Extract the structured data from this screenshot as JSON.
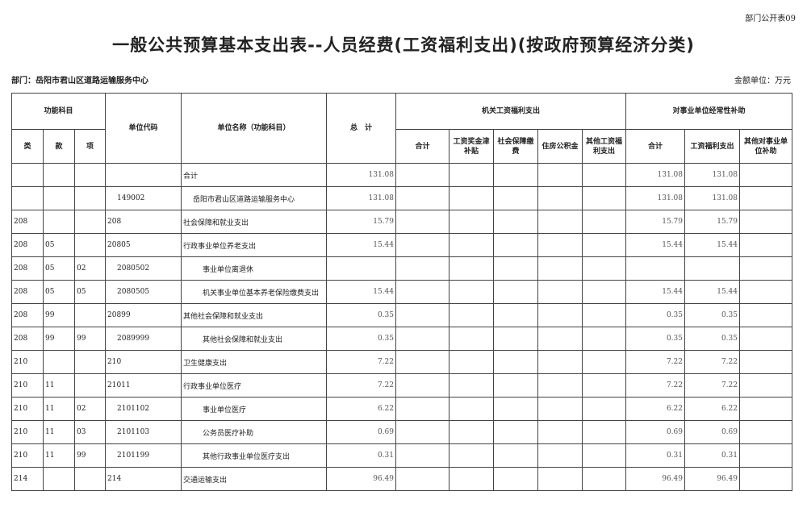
{
  "form_code": "部门公开表09",
  "title": "一般公共预算基本支出表--人员经费(工资福利支出)(按政府预算经济分类)",
  "department": "部门：岳阳市君山区道路运输服务中心",
  "unit": "金额单位：万元",
  "headers": {
    "func": "功能科目",
    "lei": "类",
    "kuan": "款",
    "xiang": "项",
    "code": "单位代码",
    "name": "单位名称（功能科目）",
    "total": "总　计",
    "org": "机关工资福利支出",
    "org_sum": "合计",
    "org_wage": "工资奖金津补贴",
    "org_social": "社会保障缴费",
    "org_housing": "住房公积金",
    "org_other": "其他工资福利支出",
    "sub": "对事业单位经常性补助",
    "sub_sum": "合计",
    "sub_wage": "工资福利支出",
    "sub_other": "其他对事业单位补助"
  },
  "rows": [
    {
      "lei": "",
      "kuan": "",
      "xiang": "",
      "code": "",
      "name": "合计",
      "total": "131.08",
      "sub_sum": "131.08",
      "sub_wage": "131.08",
      "indent": 0
    },
    {
      "lei": "",
      "kuan": "",
      "xiang": "",
      "code": "149002",
      "name": "岳阳市君山区道路运输服务中心",
      "total": "131.08",
      "sub_sum": "131.08",
      "sub_wage": "131.08",
      "indent": 1
    },
    {
      "lei": "208",
      "kuan": "",
      "xiang": "",
      "code": "208",
      "name": "社会保障和就业支出",
      "total": "15.79",
      "sub_sum": "15.79",
      "sub_wage": "15.79",
      "indent": 0
    },
    {
      "lei": "208",
      "kuan": "05",
      "xiang": "",
      "code": "20805",
      "name": "行政事业单位养老支出",
      "total": "15.44",
      "sub_sum": "15.44",
      "sub_wage": "15.44",
      "indent": 0
    },
    {
      "lei": "208",
      "kuan": "05",
      "xiang": "02",
      "code": "2080502",
      "name": "事业单位离退休",
      "total": "",
      "sub_sum": "",
      "sub_wage": "",
      "indent": 2
    },
    {
      "lei": "208",
      "kuan": "05",
      "xiang": "05",
      "code": "2080505",
      "name": "机关事业单位基本养老保险缴费支出",
      "total": "15.44",
      "sub_sum": "15.44",
      "sub_wage": "15.44",
      "indent": 2
    },
    {
      "lei": "208",
      "kuan": "99",
      "xiang": "",
      "code": "20899",
      "name": "其他社会保障和就业支出",
      "total": "0.35",
      "sub_sum": "0.35",
      "sub_wage": "0.35",
      "indent": 0
    },
    {
      "lei": "208",
      "kuan": "99",
      "xiang": "99",
      "code": "2089999",
      "name": "其他社会保障和就业支出",
      "total": "0.35",
      "sub_sum": "0.35",
      "sub_wage": "0.35",
      "indent": 2
    },
    {
      "lei": "210",
      "kuan": "",
      "xiang": "",
      "code": "210",
      "name": "卫生健康支出",
      "total": "7.22",
      "sub_sum": "7.22",
      "sub_wage": "7.22",
      "indent": 0
    },
    {
      "lei": "210",
      "kuan": "11",
      "xiang": "",
      "code": "21011",
      "name": "行政事业单位医疗",
      "total": "7.22",
      "sub_sum": "7.22",
      "sub_wage": "7.22",
      "indent": 0
    },
    {
      "lei": "210",
      "kuan": "11",
      "xiang": "02",
      "code": "2101102",
      "name": "事业单位医疗",
      "total": "6.22",
      "sub_sum": "6.22",
      "sub_wage": "6.22",
      "indent": 2
    },
    {
      "lei": "210",
      "kuan": "11",
      "xiang": "03",
      "code": "2101103",
      "name": "公务员医疗补助",
      "total": "0.69",
      "sub_sum": "0.69",
      "sub_wage": "0.69",
      "indent": 2
    },
    {
      "lei": "210",
      "kuan": "11",
      "xiang": "99",
      "code": "2101199",
      "name": "其他行政事业单位医疗支出",
      "total": "0.31",
      "sub_sum": "0.31",
      "sub_wage": "0.31",
      "indent": 2
    },
    {
      "lei": "214",
      "kuan": "",
      "xiang": "",
      "code": "214",
      "name": "交通运输支出",
      "total": "96.49",
      "sub_sum": "96.49",
      "sub_wage": "96.49",
      "indent": 0
    }
  ]
}
